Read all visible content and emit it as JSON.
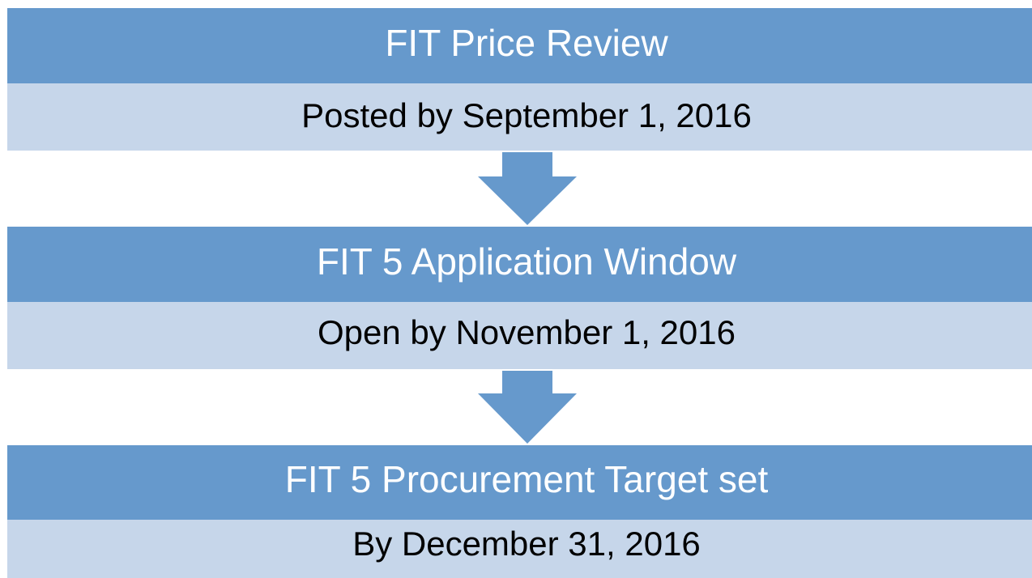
{
  "steps": [
    {
      "title": "FIT Price Review",
      "detail": "Posted by September 1, 2016"
    },
    {
      "title": "FIT 5 Application Window",
      "detail": "Open by November 1, 2016"
    },
    {
      "title": "FIT 5 Procurement Target set",
      "detail": "By December 31, 2016"
    }
  ]
}
